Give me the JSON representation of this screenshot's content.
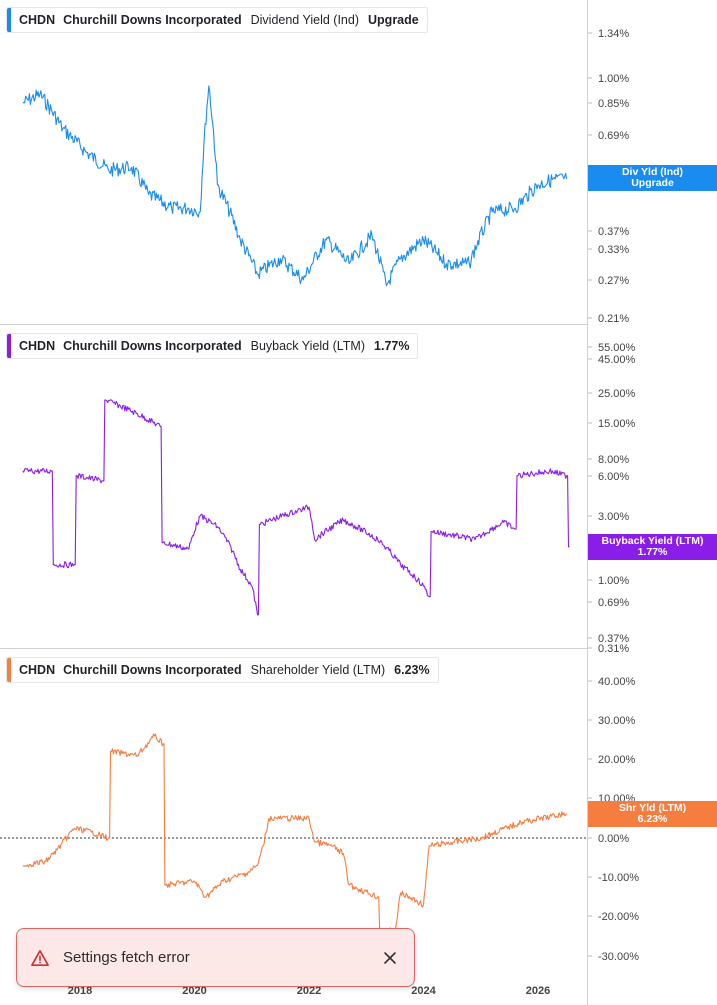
{
  "panels": [
    {
      "ticker": "CHDN",
      "company": "Churchill Downs Incorporated",
      "metric": "Dividend Yield (Ind)",
      "value": "Upgrade",
      "color": "#1a8cf0",
      "flag": {
        "line1": "Div Yld (Ind)",
        "line2": "Upgrade"
      }
    },
    {
      "ticker": "CHDN",
      "company": "Churchill Downs Incorporated",
      "metric": "Buyback Yield (LTM)",
      "value": "1.77%",
      "color": "#8a1ee8",
      "flag": {
        "line1": "Buyback Yield (LTM)",
        "line2": "1.77%"
      }
    },
    {
      "ticker": "CHDN",
      "company": "Churchill Downs Incorporated",
      "metric": "Shareholder Yield (LTM)",
      "value": "6.23%",
      "color": "#f47d3f",
      "flag": {
        "line1": "Shr Yld (LTM)",
        "line2": "6.23%"
      }
    }
  ],
  "x_axis_labels": [
    "2018",
    "2020",
    "2022",
    "2024",
    "2026"
  ],
  "chart_data": [
    {
      "type": "line",
      "series": [
        {
          "name": "Dividend Yield (Ind)",
          "x": [
            2017.0,
            2017.3,
            2017.7,
            2018.1,
            2018.5,
            2018.9,
            2019.2,
            2019.6,
            2019.9,
            2020.1,
            2020.25,
            2020.4,
            2020.8,
            2021.1,
            2021.5,
            2021.9,
            2022.3,
            2022.7,
            2023.1,
            2023.35,
            2023.6,
            2024.0,
            2024.4,
            2024.8,
            2025.2,
            2025.6,
            2026.0,
            2026.3,
            2026.5
          ],
          "y": [
            0.85,
            0.9,
            0.72,
            0.62,
            0.55,
            0.56,
            0.47,
            0.43,
            0.43,
            0.42,
            0.95,
            0.5,
            0.35,
            0.28,
            0.31,
            0.27,
            0.35,
            0.3,
            0.36,
            0.26,
            0.31,
            0.35,
            0.3,
            0.3,
            0.42,
            0.43,
            0.5,
            0.52,
            0.52
          ]
        }
      ],
      "y_ticks": [
        "1.34%",
        "1.00%",
        "0.85%",
        "0.69%",
        "0.37%",
        "0.33%",
        "0.27%",
        "0.21%"
      ],
      "y_scale": "log"
    },
    {
      "type": "line",
      "series": [
        {
          "name": "Buyback Yield (LTM)",
          "x": [
            2017.0,
            2017.5,
            2017.55,
            2017.9,
            2017.95,
            2018.4,
            2018.45,
            2019.4,
            2019.45,
            2019.9,
            2020.1,
            2020.4,
            2020.8,
            2021.0,
            2021.1,
            2021.15,
            2022.0,
            2022.1,
            2022.6,
            2023.2,
            2023.6,
            2024.0,
            2024.1,
            2024.15,
            2024.9,
            2025.4,
            2025.6,
            2025.65,
            2026.2,
            2026.5,
            2026.55
          ],
          "y": [
            6.5,
            6.5,
            1.3,
            1.3,
            6.0,
            5.5,
            22,
            14,
            1.9,
            1.7,
            3.0,
            2.5,
            1.2,
            0.9,
            0.55,
            2.6,
            3.5,
            2.0,
            2.8,
            2.0,
            1.3,
            0.9,
            0.75,
            2.3,
            2.0,
            2.7,
            2.4,
            6.0,
            6.5,
            6.0,
            1.77
          ]
        }
      ],
      "y_ticks": [
        "55.00%",
        "45.00%",
        "25.00%",
        "15.00%",
        "8.00%",
        "6.00%",
        "3.00%",
        "1.00%",
        "0.69%",
        "0.37%",
        "0.31%"
      ],
      "y_scale": "log"
    },
    {
      "type": "line",
      "series": [
        {
          "name": "Shareholder Yield (LTM)",
          "x": [
            2017.0,
            2017.4,
            2017.6,
            2017.9,
            2018.2,
            2018.5,
            2018.55,
            2019.0,
            2019.3,
            2019.45,
            2019.5,
            2020.0,
            2020.2,
            2020.5,
            2020.9,
            2021.1,
            2021.2,
            2021.3,
            2022.0,
            2022.1,
            2022.4,
            2022.6,
            2022.7,
            2023.2,
            2023.25,
            2023.5,
            2023.6,
            2024.0,
            2024.1,
            2025.0,
            2025.7,
            2026.5
          ],
          "y": [
            -7,
            -6,
            -3,
            2.5,
            1.5,
            0,
            22,
            21,
            26,
            24,
            -12,
            -11,
            -15,
            -11,
            -9,
            -7,
            -2,
            5,
            5,
            -1,
            -2,
            -4,
            -12,
            -15,
            -23,
            -24,
            -14,
            -17,
            -2,
            0,
            4,
            6.23
          ]
        }
      ],
      "y_ticks": [
        "40.00%",
        "30.00%",
        "20.00%",
        "10.00%",
        "0.00%",
        "-10.00%",
        "-20.00%",
        "-30.00%"
      ]
    }
  ],
  "toast": {
    "message": "Settings fetch error"
  },
  "colors": {
    "toast_bg": "#fde8e8",
    "toast_border": "#e06464",
    "warn": "#d32f2f"
  }
}
